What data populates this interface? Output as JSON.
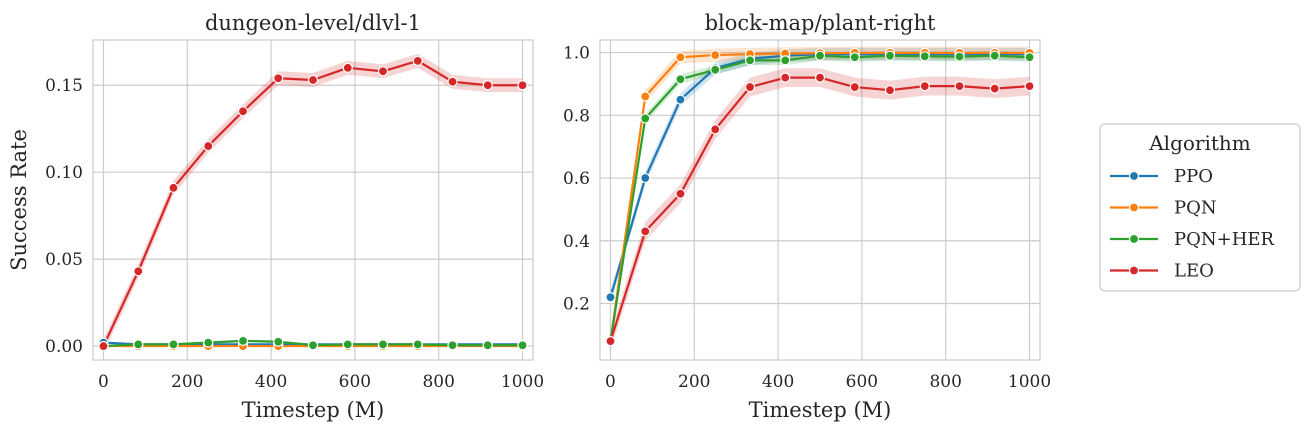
{
  "chart_data": [
    {
      "type": "line",
      "title": "dungeon-level/dlvl-1",
      "xlabel": "Timestep (M)",
      "ylabel": "Success Rate",
      "xlim": [
        -25,
        1025
      ],
      "ylim": [
        -0.008,
        0.176
      ],
      "xticks": [
        0,
        200,
        400,
        600,
        800,
        1000
      ],
      "xtick_labels": [
        "0",
        "200",
        "400",
        "600",
        "800",
        "1000"
      ],
      "yticks": [
        0.0,
        0.05,
        0.1,
        0.15
      ],
      "ytick_labels": [
        "0.00",
        "0.05",
        "0.10",
        "0.15"
      ],
      "grid": true,
      "x": [
        0,
        83,
        167,
        250,
        333,
        417,
        500,
        583,
        667,
        750,
        833,
        917,
        1000
      ],
      "series": [
        {
          "name": "PPO",
          "color": "#1f77b4",
          "values": [
            0.002,
            0.001,
            0.001,
            0.001,
            0.001,
            0.001,
            0.001,
            0.001,
            0.001,
            0.001,
            0.001,
            0.001,
            0.001
          ],
          "band": 0.0005
        },
        {
          "name": "PQN",
          "color": "#ff7f0e",
          "values": [
            0.0,
            0.0,
            0.0,
            0.0,
            0.0,
            0.0,
            0.0,
            0.0,
            0.0,
            0.0,
            0.0,
            0.0,
            0.0
          ],
          "band": 0.0005
        },
        {
          "name": "PQN+HER",
          "color": "#2ca02c",
          "values": [
            0.0,
            0.001,
            0.001,
            0.002,
            0.003,
            0.0025,
            0.0005,
            0.001,
            0.001,
            0.001,
            0.0005,
            0.0005,
            0.0005
          ],
          "band": 0.0007
        },
        {
          "name": "LEO",
          "color": "#d62728",
          "values": [
            0.0,
            0.043,
            0.091,
            0.115,
            0.135,
            0.154,
            0.153,
            0.16,
            0.158,
            0.164,
            0.152,
            0.15,
            0.15
          ],
          "band": 0.004
        }
      ]
    },
    {
      "type": "line",
      "title": "block-map/plant-right",
      "xlabel": "Timestep (M)",
      "ylabel": "",
      "xlim": [
        -25,
        1025
      ],
      "ylim": [
        0.02,
        1.04
      ],
      "xticks": [
        0,
        200,
        400,
        600,
        800,
        1000
      ],
      "xtick_labels": [
        "0",
        "200",
        "400",
        "600",
        "800",
        "1000"
      ],
      "yticks": [
        0.2,
        0.4,
        0.6,
        0.8,
        1.0
      ],
      "ytick_labels": [
        "0.2",
        "0.4",
        "0.6",
        "0.8",
        "1.0"
      ],
      "grid": true,
      "x": [
        0,
        83,
        167,
        250,
        333,
        417,
        500,
        583,
        667,
        750,
        833,
        917,
        1000
      ],
      "series": [
        {
          "name": "PPO",
          "color": "#1f77b4",
          "values": [
            0.22,
            0.6,
            0.85,
            0.95,
            0.98,
            0.99,
            0.995,
            0.995,
            0.995,
            0.995,
            0.995,
            0.995,
            0.995
          ],
          "band": 0.02
        },
        {
          "name": "PQN",
          "color": "#ff7f0e",
          "values": [
            0.08,
            0.86,
            0.985,
            0.992,
            0.995,
            0.997,
            0.998,
            0.999,
            0.999,
            0.999,
            0.999,
            0.999,
            0.999
          ],
          "band": 0.02
        },
        {
          "name": "PQN+HER",
          "color": "#2ca02c",
          "values": [
            0.08,
            0.79,
            0.915,
            0.945,
            0.975,
            0.975,
            0.99,
            0.985,
            0.99,
            0.988,
            0.987,
            0.99,
            0.985
          ],
          "band": 0.015
        },
        {
          "name": "LEO",
          "color": "#d62728",
          "values": [
            0.08,
            0.43,
            0.55,
            0.755,
            0.89,
            0.92,
            0.92,
            0.89,
            0.88,
            0.893,
            0.893,
            0.885,
            0.893
          ],
          "band": 0.03
        }
      ]
    }
  ],
  "legend": {
    "title": "Algorithm",
    "placement": "right",
    "items": [
      {
        "label": "PPO",
        "color": "#1f77b4"
      },
      {
        "label": "PQN",
        "color": "#ff7f0e"
      },
      {
        "label": "PQN+HER",
        "color": "#2ca02c"
      },
      {
        "label": "LEO",
        "color": "#d62728"
      }
    ]
  }
}
